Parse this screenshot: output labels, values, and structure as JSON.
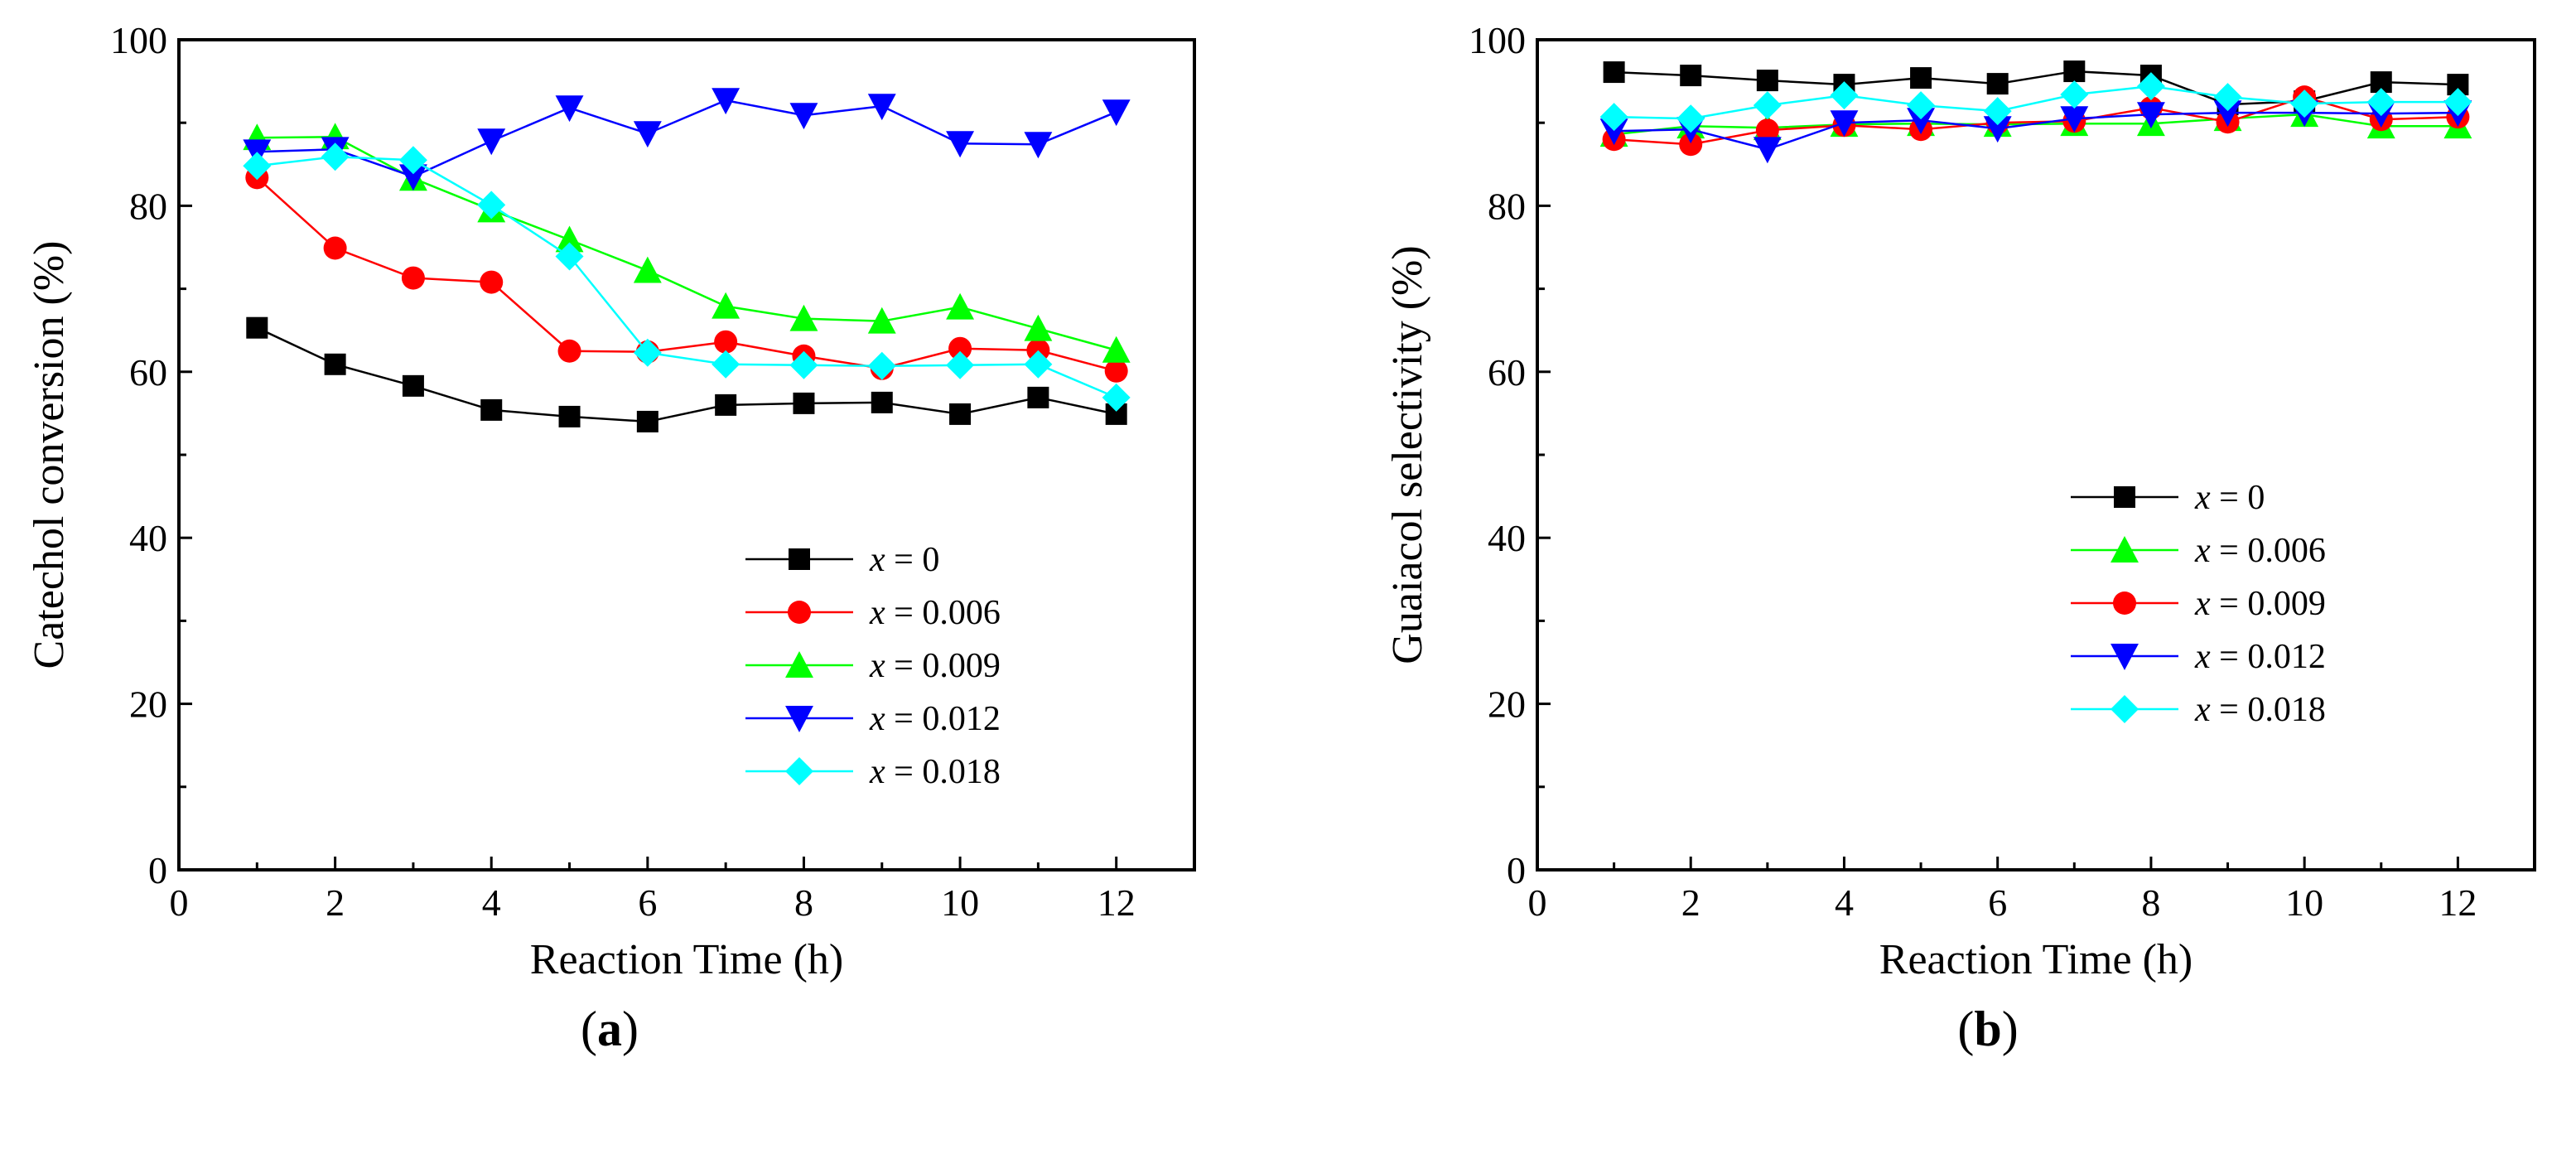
{
  "chart_data": [
    {
      "id": "a",
      "type": "line",
      "panel_label": "a",
      "xlabel": "Reaction Time (h)",
      "ylabel": "Catechol conversion (%)",
      "xlim": [
        0,
        13
      ],
      "ylim": [
        0,
        100
      ],
      "xticks": [
        0,
        2,
        4,
        6,
        8,
        10,
        12
      ],
      "yticks": [
        0,
        20,
        40,
        60,
        80,
        100
      ],
      "legend_position": "bottom-right",
      "x": [
        1,
        2,
        3,
        4,
        5,
        6,
        7,
        8,
        9,
        10,
        11,
        12
      ],
      "series": [
        {
          "name_var": "x",
          "name_value": " = 0",
          "color": "#000000",
          "marker": "square",
          "values": [
            65.3,
            60.9,
            58.3,
            55.4,
            54.6,
            54.0,
            56.0,
            56.2,
            56.3,
            54.9,
            56.9,
            54.9
          ]
        },
        {
          "name_var": "x",
          "name_value": " = 0.006",
          "color": "#ff0000",
          "marker": "circle",
          "values": [
            83.4,
            74.9,
            71.3,
            70.8,
            62.5,
            62.4,
            63.6,
            61.9,
            60.4,
            62.8,
            62.6,
            60.1
          ]
        },
        {
          "name_var": "x",
          "name_value": " = 0.009",
          "color": "#00ff00",
          "marker": "triangle-up",
          "values": [
            88.2,
            88.3,
            83.3,
            79.5,
            75.9,
            72.2,
            67.9,
            66.4,
            66.1,
            67.8,
            65.2,
            62.6
          ]
        },
        {
          "name_var": "x",
          "name_value": " = 0.012",
          "color": "#0000ff",
          "marker": "triangle-down",
          "values": [
            86.5,
            86.8,
            83.5,
            87.8,
            91.8,
            88.7,
            92.7,
            90.9,
            92.0,
            87.5,
            87.4,
            91.3
          ]
        },
        {
          "name_var": "x",
          "name_value": " = 0.018",
          "color": "#00ffff",
          "marker": "diamond",
          "values": [
            84.8,
            85.9,
            85.5,
            80.1,
            73.9,
            62.3,
            60.9,
            60.8,
            60.7,
            60.8,
            60.9,
            56.9
          ]
        }
      ]
    },
    {
      "id": "b",
      "type": "line",
      "panel_label": "b",
      "xlabel": "Reaction Time (h)",
      "ylabel": "Guaiacol selectivity (%)",
      "xlim": [
        0,
        13
      ],
      "ylim": [
        0,
        100
      ],
      "xticks": [
        0,
        2,
        4,
        6,
        8,
        10,
        12
      ],
      "yticks": [
        0,
        20,
        40,
        60,
        80,
        100
      ],
      "legend_position": "center-right",
      "x": [
        1,
        2,
        3,
        4,
        5,
        6,
        7,
        8,
        9,
        10,
        11,
        12
      ],
      "series": [
        {
          "name_var": "x",
          "name_value": " = 0",
          "color": "#000000",
          "marker": "square",
          "values": [
            96.1,
            95.7,
            95.1,
            94.6,
            95.4,
            94.7,
            96.2,
            95.7,
            92.2,
            92.6,
            94.9,
            94.6
          ]
        },
        {
          "name_var": "x",
          "name_value": " = 0.006",
          "color": "#00ff00",
          "marker": "triangle-up",
          "values": [
            88.6,
            89.6,
            89.4,
            89.8,
            89.9,
            89.8,
            89.9,
            89.9,
            90.5,
            91.0,
            89.6,
            89.6
          ]
        },
        {
          "name_var": "x",
          "name_value": " = 0.009",
          "color": "#ff0000",
          "marker": "circle",
          "values": [
            88.0,
            87.4,
            89.1,
            89.7,
            89.2,
            90.0,
            90.2,
            91.8,
            90.1,
            93.1,
            90.4,
            90.7
          ]
        },
        {
          "name_var": "x",
          "name_value": " = 0.012",
          "color": "#0000ff",
          "marker": "triangle-down",
          "values": [
            89.0,
            89.2,
            86.8,
            90.0,
            90.3,
            89.3,
            90.5,
            91.0,
            91.2,
            91.2,
            91.1,
            91.2
          ]
        },
        {
          "name_var": "x",
          "name_value": " = 0.018",
          "color": "#00ffff",
          "marker": "diamond",
          "values": [
            90.7,
            90.5,
            92.1,
            93.3,
            92.1,
            91.4,
            93.4,
            94.4,
            93.1,
            92.3,
            92.5,
            92.5
          ]
        }
      ]
    }
  ]
}
